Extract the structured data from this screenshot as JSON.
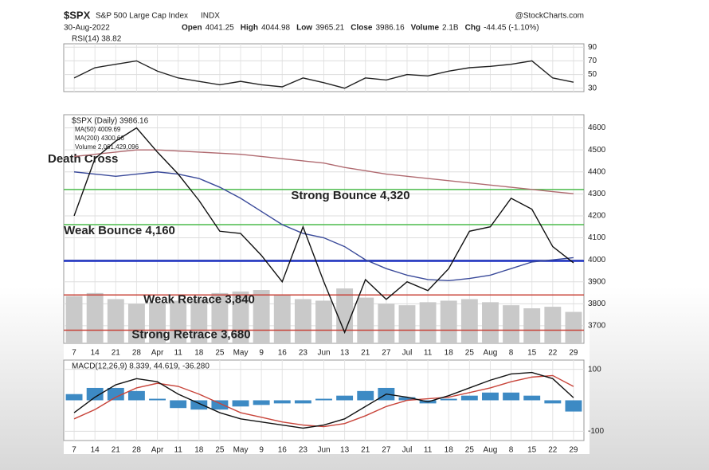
{
  "header": {
    "symbol": "$SPX",
    "name": "S&P 500 Large Cap Index",
    "exchange": "INDX",
    "source": "@StockCharts.com",
    "date": "30-Aug-2022",
    "quote": [
      {
        "label": "Open",
        "value": 4041.25
      },
      {
        "label": "High",
        "value": 4044.98
      },
      {
        "label": "Low",
        "value": 3965.21
      },
      {
        "label": "Close",
        "value": 3986.16
      },
      {
        "label": "Volume",
        "value": "2.1B"
      },
      {
        "label": "Chg",
        "value": "-44.45 (-1.10%)"
      }
    ]
  },
  "chart_data": [
    {
      "type": "line",
      "title": "RSI(14) 38.82",
      "series": [
        {
          "name": "RSI(14)",
          "color": "#222222",
          "values": [
            45,
            60,
            65,
            70,
            55,
            45,
            40,
            35,
            40,
            35,
            32,
            45,
            38,
            30,
            45,
            42,
            50,
            48,
            55,
            60,
            62,
            65,
            70,
            45,
            38.82
          ]
        }
      ],
      "ylim": [
        25,
        95
      ],
      "yticks": [
        30,
        50,
        70,
        90
      ],
      "grid": true
    },
    {
      "type": "line",
      "title": "$SPX (Daily) 3986.16",
      "categories": [
        "7",
        "14",
        "21",
        "28",
        "Apr",
        "11",
        "18",
        "25",
        "May",
        "9",
        "16",
        "23",
        "Jun",
        "13",
        "21",
        "27",
        "Jul",
        "11",
        "18",
        "25",
        "Aug",
        "8",
        "15",
        "22",
        "29"
      ],
      "series": [
        {
          "name": "MA(50) 4009.69",
          "color": "#3a4a9a",
          "values": [
            4400,
            4390,
            4380,
            4390,
            4400,
            4390,
            4370,
            4330,
            4280,
            4220,
            4160,
            4120,
            4100,
            4060,
            4000,
            3960,
            3930,
            3910,
            3905,
            3915,
            3930,
            3960,
            3990,
            4000,
            4009.69
          ]
        },
        {
          "name": "MA(200) 4300.66",
          "color": "#b06a70",
          "values": [
            4470,
            4480,
            4490,
            4500,
            4500,
            4495,
            4490,
            4485,
            4480,
            4470,
            4460,
            4450,
            4440,
            4420,
            4405,
            4390,
            4380,
            4370,
            4360,
            4350,
            4340,
            4330,
            4320,
            4310,
            4300.66
          ]
        },
        {
          "name": "$SPX (Daily) 3986.16",
          "color": "#111111",
          "values": [
            4200,
            4460,
            4540,
            4600,
            4490,
            4390,
            4270,
            4130,
            4120,
            4020,
            3900,
            4150,
            3900,
            3670,
            3910,
            3820,
            3900,
            3860,
            3960,
            4130,
            4150,
            4280,
            4230,
            4060,
            3986.16
          ]
        }
      ],
      "volume": {
        "name": "Volume 2,061,429,096",
        "color": "#c9c9c9",
        "lim": [
          0,
          15000000000
        ],
        "values": [
          3100000000,
          3300000000,
          2900000000,
          2600000000,
          2700000000,
          2800000000,
          2900000000,
          3300000000,
          3400000000,
          3500000000,
          3200000000,
          2900000000,
          2800000000,
          3600000000,
          3000000000,
          2600000000,
          2500000000,
          2700000000,
          2800000000,
          2900000000,
          2700000000,
          2500000000,
          2300000000,
          2400000000,
          2061429096
        ]
      },
      "levels": [
        {
          "label": "Strong Bounce 4,320",
          "value": 4320,
          "color": "#4cbb4c"
        },
        {
          "label": "Weak Bounce 4,160",
          "value": 4160,
          "color": "#4cbb4c"
        },
        {
          "value": 3995,
          "color": "#1a2fc0"
        },
        {
          "label": "Weak Retrace 3,840",
          "value": 3840,
          "color": "#c8443a"
        },
        {
          "label": "Strong Retrace 3,680",
          "value": 3680,
          "color": "#c8443a"
        }
      ],
      "annotation": "Death Cross",
      "ylim": [
        3620,
        4660
      ],
      "yticks": [
        3700,
        3800,
        3900,
        4000,
        4100,
        4200,
        4300,
        4400,
        4500,
        4600
      ],
      "grid": true
    },
    {
      "type": "line",
      "title": "MACD(12,26,9) 8.339, 44.619, -36.280",
      "categories": [
        "7",
        "14",
        "21",
        "28",
        "Apr",
        "11",
        "18",
        "25",
        "May",
        "9",
        "16",
        "23",
        "Jun",
        "13",
        "21",
        "27",
        "Jul",
        "11",
        "18",
        "25",
        "Aug",
        "8",
        "15",
        "22",
        "29"
      ],
      "series": [
        {
          "name": "Histogram",
          "color": "#3d8ac4",
          "bars": true,
          "values": [
            20,
            40,
            40,
            30,
            5,
            -25,
            -30,
            -30,
            -20,
            -15,
            -10,
            -10,
            5,
            15,
            30,
            40,
            10,
            -10,
            5,
            15,
            25,
            25,
            15,
            -10,
            -36.28
          ]
        },
        {
          "name": "Signal",
          "color": "#c8443a",
          "values": [
            -60,
            -30,
            10,
            40,
            55,
            45,
            20,
            -10,
            -40,
            -55,
            -70,
            -80,
            -85,
            -75,
            -50,
            -20,
            0,
            5,
            10,
            25,
            40,
            60,
            75,
            80,
            44.619
          ]
        },
        {
          "name": "MACD",
          "color": "#111111",
          "values": [
            -40,
            10,
            50,
            70,
            60,
            20,
            -10,
            -40,
            -60,
            -70,
            -80,
            -90,
            -80,
            -60,
            -20,
            20,
            10,
            -5,
            15,
            40,
            65,
            85,
            90,
            70,
            8.339
          ]
        }
      ],
      "ylim": [
        -130,
        130
      ],
      "yticks": [
        -100,
        100
      ],
      "grid": true
    }
  ]
}
